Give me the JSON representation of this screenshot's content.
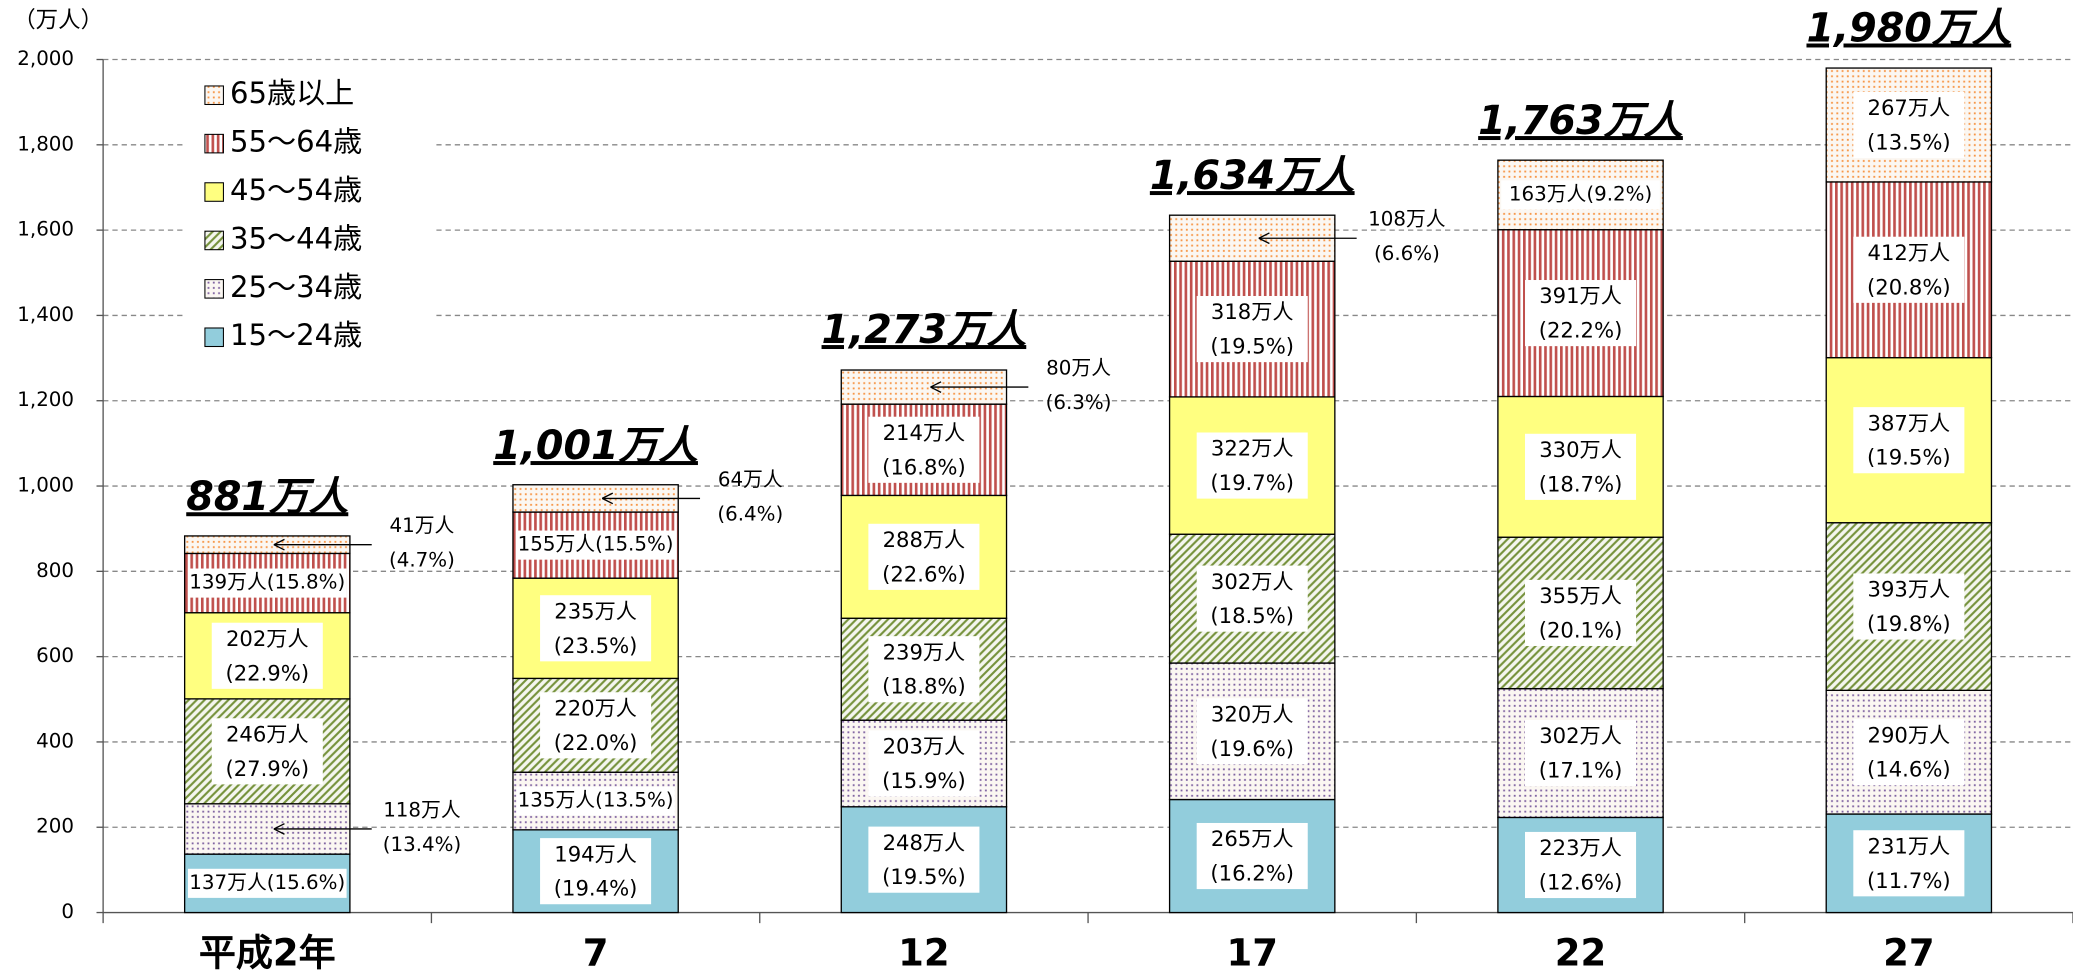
{
  "chart_data": {
    "type": "stacked_bar",
    "y_label": "（万人）",
    "categories": [
      "平成2年",
      "7",
      "12",
      "17",
      "22",
      "27"
    ],
    "ylim": [
      0,
      2000
    ],
    "yticks": [
      0,
      200,
      400,
      600,
      800,
      {
        "value": 1000,
        "label": "1,000"
      },
      {
        "value": 1200,
        "label": "1,200"
      },
      {
        "value": 1400,
        "label": "1,400"
      },
      {
        "value": 1600,
        "label": "1,600"
      },
      {
        "value": 1800,
        "label": "1,800"
      },
      {
        "value": 2000,
        "label": "2,000"
      }
    ],
    "grid": true,
    "legend": "top-left",
    "series": [
      {
        "name": "15～24歳",
        "color": "#92cddc",
        "pattern": "solid",
        "values": [
          137,
          194,
          248,
          265,
          223,
          231
        ],
        "value_labels": [
          "137万人(15.6%)",
          "194万人(19.4%)",
          "248万人(19.5%)",
          "265万人(16.2%)",
          "223万人(12.6%)",
          "231万人(11.7%)"
        ]
      },
      {
        "name": "25～34歳",
        "color": "#8064a2",
        "pattern": "dots",
        "values": [
          118,
          135,
          203,
          320,
          302,
          290
        ],
        "value_labels": [
          "118万人(13.4%)",
          "135万人(13.5%)",
          "203万人(15.9%)",
          "320万人(19.6%)",
          "302万人(17.1%)",
          "290万人(14.6%)"
        ]
      },
      {
        "name": "35～44歳",
        "color": "#76923c",
        "pattern": "hatch",
        "values": [
          246,
          220,
          239,
          302,
          355,
          393
        ],
        "value_labels": [
          "246万人(27.9%)",
          "220万人(22.0%)",
          "239万人(18.8%)",
          "302万人(18.5%)",
          "355万人(20.1%)",
          "393万人(19.8%)"
        ]
      },
      {
        "name": "45～54歳",
        "color": "#ffff80",
        "pattern": "solid",
        "values": [
          202,
          235,
          288,
          322,
          330,
          387
        ],
        "value_labels": [
          "202万人(22.9%)",
          "235万人(23.5%)",
          "288万人(22.6%)",
          "322万人(19.7%)",
          "330万人(18.7%)",
          "387万人(19.5%)"
        ]
      },
      {
        "name": "55～64歳",
        "color": "#c0504d",
        "pattern": "stripes",
        "values": [
          139,
          155,
          214,
          318,
          391,
          412
        ],
        "value_labels": [
          "139万人(15.8%)",
          "155万人(15.5%)",
          "214万人(16.8%)",
          "318万人(19.5%)",
          "391万人(22.2%)",
          "412万人(20.8%)"
        ]
      },
      {
        "name": "65歳以上",
        "color": "#f79646",
        "pattern": "dots",
        "values": [
          41,
          64,
          80,
          108,
          163,
          267
        ],
        "value_labels": [
          "41万人(4.7%)",
          "64万人(6.4%)",
          "80万人(6.3%)",
          "108万人(6.6%)",
          "163万人(9.2%)",
          "267万人(13.5%)"
        ]
      }
    ],
    "totals": [
      881,
      1001,
      1273,
      1634,
      1763,
      1980
    ],
    "total_labels": [
      "881万人",
      "1,001万人",
      "1,273万人",
      "1,634万人",
      "1,763万人",
      "1,980万人"
    ]
  }
}
